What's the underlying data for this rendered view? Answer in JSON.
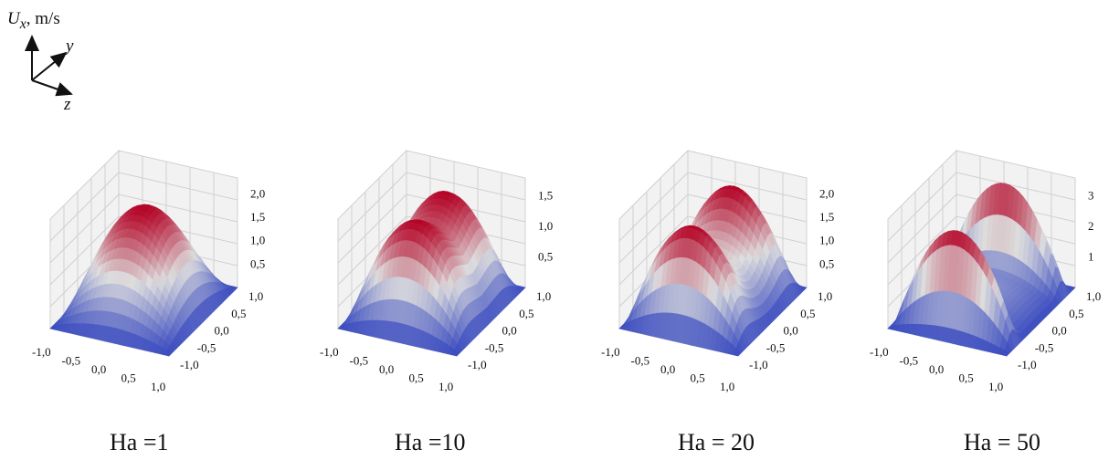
{
  "quantity_label": {
    "symbol": "U",
    "subscript": "x",
    "unit": ", m/s"
  },
  "axis_labels": {
    "y": "y",
    "z": "z"
  },
  "colormap": {
    "low": "#3b4cc0",
    "mid": "#dddddd",
    "high": "#b40426",
    "background_plane": "#f2f2f2",
    "grid": "#d0d0d0"
  },
  "chart_data": [
    {
      "type": "surface",
      "caption_var": "Ha",
      "caption_eq": "=",
      "caption_val": "1",
      "x_ticks": [
        "-1,0",
        "-0,5",
        "0,0",
        "0,5",
        "1,0"
      ],
      "y_ticks": [
        "1,0",
        "0,5",
        "0,0",
        "-0,5",
        "-1,0"
      ],
      "z_ticks": [
        "2,0",
        "1,5",
        "1,0",
        "0,5"
      ],
      "z_peak": 1.95,
      "xlim": [
        -1,
        1
      ],
      "ylim": [
        -1,
        1
      ]
    },
    {
      "type": "surface",
      "caption_var": "Ha",
      "caption_eq": "=",
      "caption_val": "10",
      "x_ticks": [
        "-1,0",
        "-0,5",
        "0,0",
        "0,5",
        "1,0"
      ],
      "y_ticks": [
        "1,0",
        "0,5",
        "0,0",
        "-0,5",
        "-1,0"
      ],
      "z_ticks": [
        "1,5",
        "1,0",
        "0,5"
      ],
      "z_peak": 1.55,
      "xlim": [
        -1,
        1
      ],
      "ylim": [
        -1,
        1
      ]
    },
    {
      "type": "surface",
      "caption_var": "Ha",
      "caption_eq": "=",
      "caption_val": "20",
      "x_ticks": [
        "-1,0",
        "-0,5",
        "0,0",
        "0,5",
        "1,0"
      ],
      "y_ticks": [
        "1,0",
        "0,5",
        "0,0",
        "-0,5",
        "-1,0"
      ],
      "z_ticks": [
        "2,0",
        "1,5",
        "1,0",
        "0,5"
      ],
      "z_peak": 2.05,
      "xlim": [
        -1,
        1
      ],
      "ylim": [
        -1,
        1
      ]
    },
    {
      "type": "surface",
      "caption_var": "Ha",
      "caption_eq": "=",
      "caption_val": "50",
      "x_ticks": [
        "-1,0",
        "-0,5",
        "0,0",
        "0,5",
        "1,0"
      ],
      "y_ticks": [
        "1,0",
        "0,5",
        "0,0",
        "-0,5",
        "-1,0"
      ],
      "z_ticks": [
        "3",
        "2",
        "1"
      ],
      "z_peak": 3.3,
      "xlim": [
        -1,
        1
      ],
      "ylim": [
        -1,
        1
      ]
    }
  ]
}
